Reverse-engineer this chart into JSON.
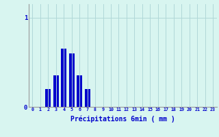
{
  "hours": [
    0,
    1,
    2,
    3,
    4,
    5,
    6,
    7,
    8,
    9,
    10,
    11,
    12,
    13,
    14,
    15,
    16,
    17,
    18,
    19,
    20,
    21,
    22,
    23
  ],
  "values": [
    0,
    0,
    0.2,
    0.35,
    0.65,
    0.6,
    0.35,
    0.2,
    0,
    0,
    0,
    0,
    0,
    0,
    0,
    0,
    0,
    0,
    0,
    0,
    0,
    0,
    0,
    0
  ],
  "bar_color": "#0000cc",
  "background_color": "#d8f5f0",
  "grid_color": "#b0d8d8",
  "axis_color": "#999999",
  "text_color": "#0000cc",
  "xlabel": "Précipitations 6min ( mm )",
  "ylim": [
    0,
    1.15
  ],
  "yticks": [
    0,
    1
  ],
  "ytick_labels": [
    "0",
    "1"
  ],
  "xlim": [
    -0.5,
    23.5
  ]
}
